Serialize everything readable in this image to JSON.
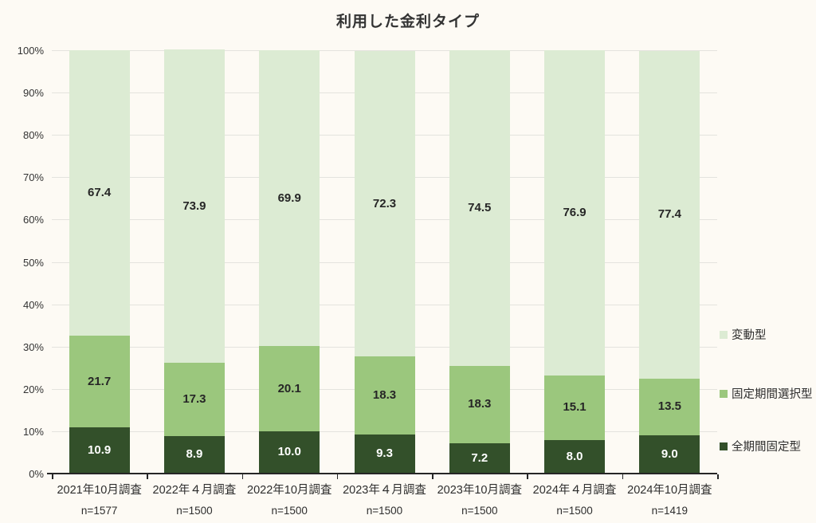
{
  "title": "利用した金利タイプ",
  "colors": {
    "background": "#fdfaf4",
    "gridline": "#e4e3de",
    "axis": "#262626",
    "text": "#2e2e2e",
    "variable_green": "#dcebd3",
    "fixed_select_green": "#9bc77d",
    "full_fixed_green": "#33502a"
  },
  "chart_data": {
    "type": "bar",
    "stacked": true,
    "title": "利用した金利タイプ",
    "xlabel": "",
    "ylabel": "",
    "grid": true,
    "legend_position": "right",
    "y_axis": {
      "min": 0,
      "max": 100,
      "step": 10,
      "tick_suffix": "%"
    },
    "categories": [
      "2021年10月調査",
      "2022年４月調査",
      "2022年10月調査",
      "2023年４月調査",
      "2023年10月調査",
      "2024年４月調査",
      "2024年10月調査"
    ],
    "sample_sizes": [
      "n=1577",
      "n=1500",
      "n=1500",
      "n=1500",
      "n=1500",
      "n=1500",
      "n=1419"
    ],
    "series": [
      {
        "name": "全期間固定型",
        "values": [
          10.9,
          8.9,
          10.0,
          9.3,
          7.2,
          8.0,
          9.0
        ],
        "color": "#33502a",
        "label_color": "#ffffff"
      },
      {
        "name": "固定期間選択型",
        "values": [
          21.7,
          17.3,
          20.1,
          18.3,
          18.3,
          15.1,
          13.5
        ],
        "color": "#9bc77d",
        "label_color": "#262626"
      },
      {
        "name": "変動型",
        "values": [
          67.4,
          73.9,
          69.9,
          72.3,
          74.5,
          76.9,
          77.4
        ],
        "color": "#dcebd3",
        "label_color": "#262626"
      }
    ],
    "legend": [
      "変動型",
      "固定期間選択型",
      "全期間固定型"
    ]
  }
}
